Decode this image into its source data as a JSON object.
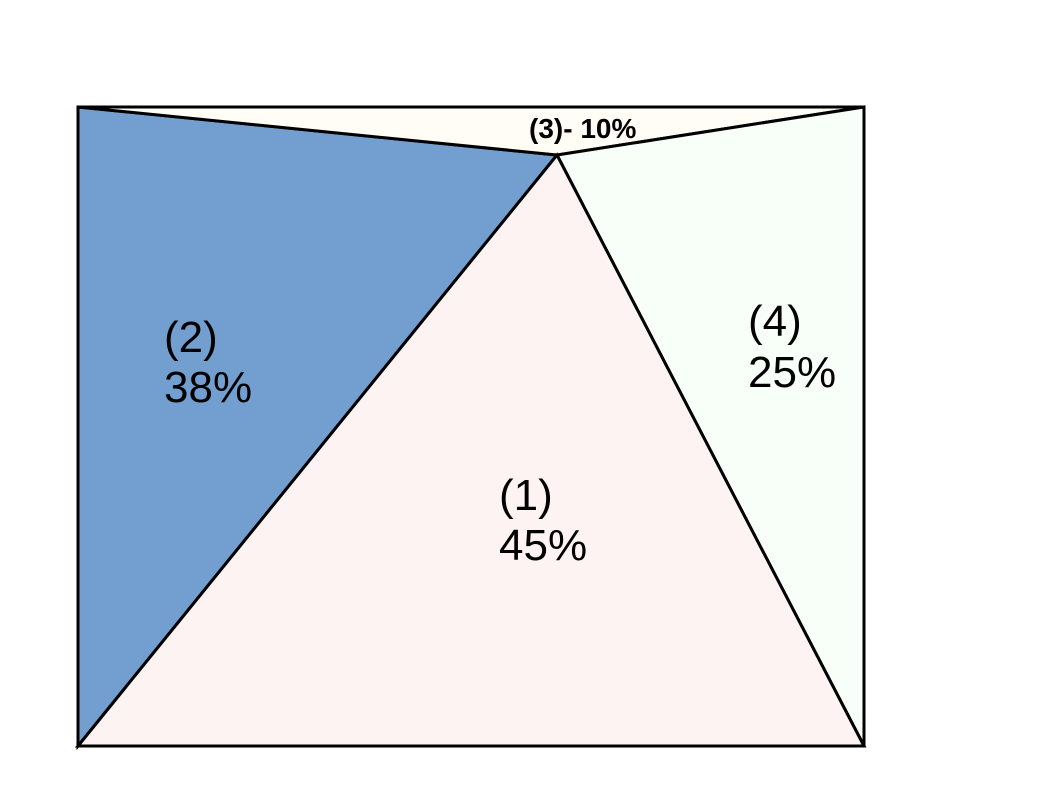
{
  "regions": [
    {
      "id": "region-1",
      "number_label": "(1)",
      "percent_label": "45%",
      "color": "#fdf3f3"
    },
    {
      "id": "region-2",
      "number_label": "(2)",
      "percent_label": "38%",
      "color": "#729fcf"
    },
    {
      "id": "region-3",
      "combined_label": "(3)- 10%",
      "color": "#fffdf5"
    },
    {
      "id": "region-4",
      "number_label": "(4)",
      "percent_label": "25%",
      "color": "#f8fff8"
    }
  ]
}
